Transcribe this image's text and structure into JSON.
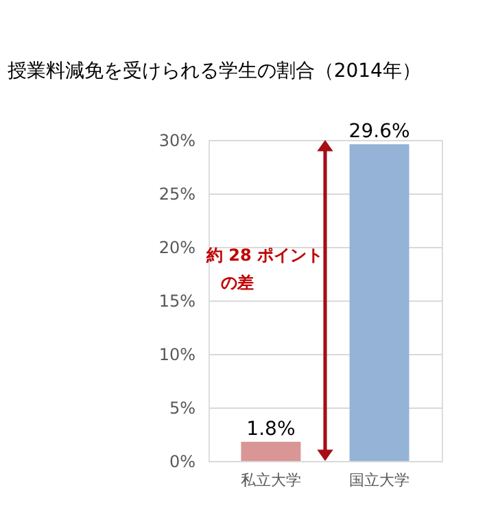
{
  "chart_data": {
    "type": "bar",
    "title": "授業料減免を受けられる学生の割合（2014年）",
    "categories": [
      "私立大学",
      "国立大学"
    ],
    "values": [
      1.8,
      29.6
    ],
    "value_labels": [
      "1.8%",
      "29.6%"
    ],
    "colors": [
      "#d99694",
      "#95b3d7"
    ],
    "ylim": [
      0,
      30
    ],
    "yticks": [
      {
        "value": 0,
        "label": "0%"
      },
      {
        "value": 5,
        "label": "5%"
      },
      {
        "value": 10,
        "label": "10%"
      },
      {
        "value": 15,
        "label": "15%"
      },
      {
        "value": 20,
        "label": "20%"
      },
      {
        "value": 25,
        "label": "25%"
      },
      {
        "value": 30,
        "label": "30%"
      }
    ],
    "grid": "y",
    "legend": false,
    "annotations": [
      "約 28 ポイント",
      "の差"
    ]
  }
}
